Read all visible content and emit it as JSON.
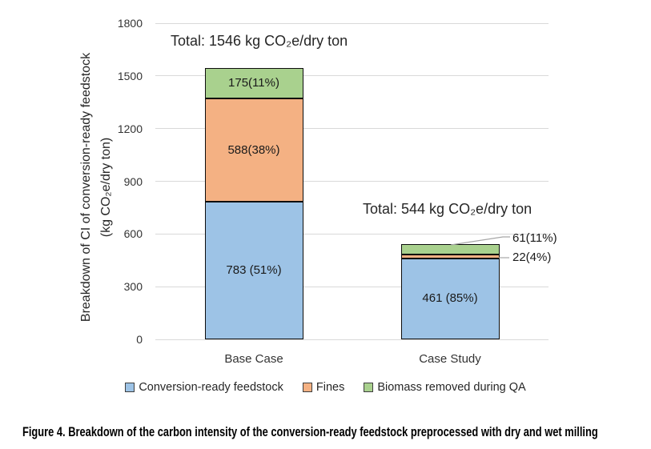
{
  "chart_data": {
    "type": "bar",
    "stacked": true,
    "categories": [
      "Base Case",
      "Case Study"
    ],
    "series": [
      {
        "name": "Conversion-ready feedstock",
        "color": "#9DC3E6",
        "values": [
          783,
          461
        ],
        "labels": [
          "783 (51%)",
          "461 (85%)"
        ]
      },
      {
        "name": "Fines",
        "color": "#F4B183",
        "values": [
          588,
          22
        ],
        "labels": [
          "588(38%)",
          "22(4%)"
        ]
      },
      {
        "name": "Biomass removed during QA",
        "color": "#A9D18E",
        "values": [
          175,
          61
        ],
        "labels": [
          "175(11%)",
          "61(11%)"
        ]
      }
    ],
    "totals": [
      {
        "value": 1546,
        "label": "Total: 1546 kg CO₂e/dry ton"
      },
      {
        "value": 544,
        "label": "Total: 544 kg CO₂e/dry ton"
      }
    ],
    "ylabel_lines": [
      "Breakdown of CI of conversion-ready feedstock",
      "(kg CO₂e/dry ton)"
    ],
    "ylabel": "Breakdown of CI of conversion-ready feedstock (kg CO₂e/dry ton)",
    "yticks": [
      0,
      300,
      600,
      900,
      1200,
      1500,
      1800
    ],
    "ylim": [
      0,
      1800
    ],
    "grid": true,
    "legend_position": "bottom",
    "legend": [
      "Conversion-ready feedstock",
      "Fines",
      "Biomass removed during QA"
    ]
  },
  "caption": "Figure 4. Breakdown of the carbon intensity of the conversion-ready feedstock preprocessed with dry and wet milling",
  "colors": {
    "conversion_ready_feedstock": "#9DC3E6",
    "fines": "#F4B183",
    "biomass_removed_during_qa": "#A9D18E",
    "gridline": "#D9D9D9",
    "leader_line": "#A6A6A6",
    "segment_border": "#0d0d0d",
    "text": "#262626"
  }
}
